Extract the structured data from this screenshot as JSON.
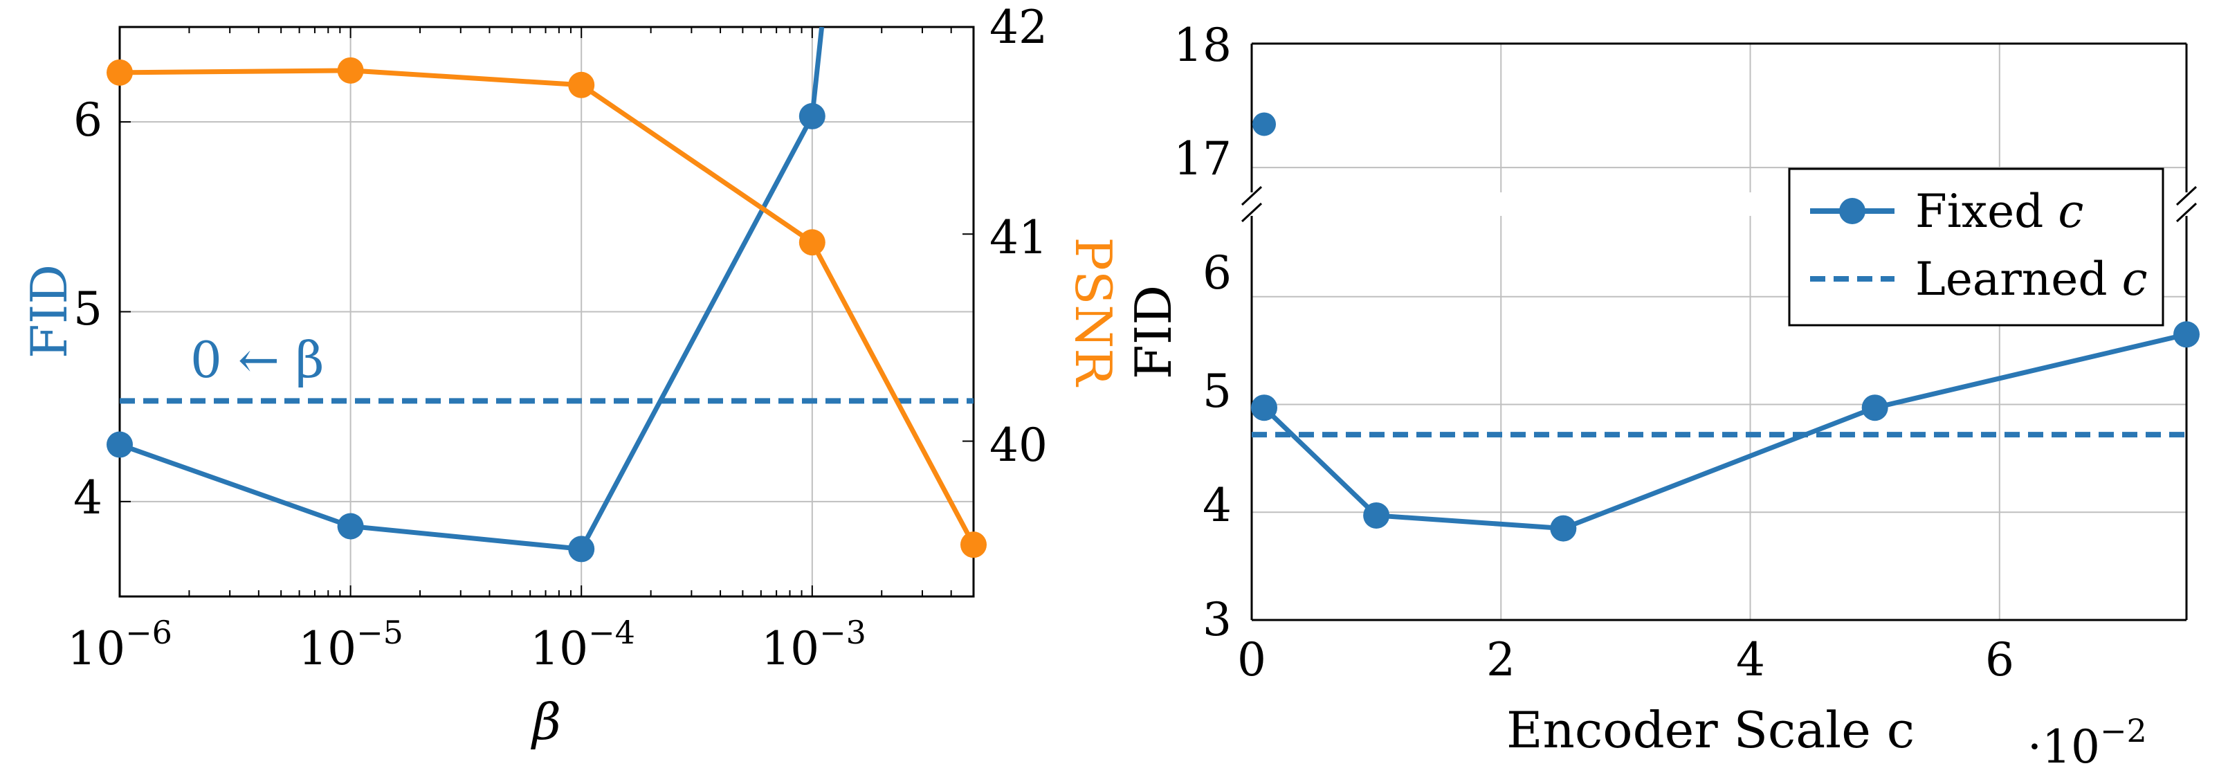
{
  "colors": {
    "blue": "#2a77b4",
    "orange": "#fb8a12",
    "grid": "#bfbfbf",
    "axis": "#000000"
  },
  "chart_data": [
    {
      "type": "line",
      "xscale": "log",
      "xlabel": "β",
      "x_ticks": [
        {
          "value": 1e-06,
          "base": "10",
          "exp": "−6"
        },
        {
          "value": 1e-05,
          "base": "10",
          "exp": "−5"
        },
        {
          "value": 0.0001,
          "base": "10",
          "exp": "−4"
        },
        {
          "value": 0.001,
          "base": "10",
          "exp": "−3"
        }
      ],
      "xlim": [
        1e-06,
        0.005
      ],
      "left_axis": {
        "label": "FID",
        "ylim": [
          3.5,
          6.5
        ],
        "ticks": [
          "4",
          "5",
          "6"
        ],
        "tick_values": [
          4,
          5,
          6
        ]
      },
      "right_axis": {
        "label": "PSNR",
        "ylim": [
          39.25,
          42
        ],
        "ticks": [
          "40",
          "41",
          "42"
        ],
        "tick_values": [
          40,
          41,
          42
        ]
      },
      "grid": true,
      "series": [
        {
          "axis": "left",
          "color": "blue",
          "markers": true,
          "x": [
            1e-06,
            1e-05,
            0.0001,
            0.001,
            0.0011
          ],
          "y": [
            4.3,
            3.87,
            3.75,
            6.03,
            6.5
          ]
        },
        {
          "axis": "right",
          "color": "orange",
          "markers": true,
          "x": [
            1e-06,
            1e-05,
            0.0001,
            0.001,
            0.005
          ],
          "y": [
            41.78,
            41.79,
            41.72,
            40.96,
            39.5
          ]
        }
      ],
      "reference_line": {
        "axis": "left",
        "y": 4.53,
        "style": "dashed",
        "color": "blue",
        "label": "0 ← β"
      }
    },
    {
      "type": "line",
      "xlabel": "Encoder Scale c",
      "ylabel": "FID",
      "x_multiplier": {
        "base": "·10",
        "exp": "−2"
      },
      "xlim": [
        0,
        7.5
      ],
      "x_ticks": [
        "0",
        "2",
        "4",
        "6"
      ],
      "x_tick_values": [
        0,
        2,
        4,
        6
      ],
      "lower_ylim": [
        3,
        6.75
      ],
      "lower_ticks": [
        "3",
        "4",
        "5",
        "6"
      ],
      "lower_tick_values": [
        3,
        4,
        5,
        6
      ],
      "upper_ylim": [
        16.8,
        18
      ],
      "upper_ticks": [
        "17",
        "18"
      ],
      "upper_tick_values": [
        17,
        18
      ],
      "broken_y_axis": true,
      "grid": true,
      "series": [
        {
          "name": "Fixed c",
          "style": "solid",
          "markers": true,
          "color": "blue",
          "x": [
            0.1,
            1.0,
            2.5,
            5.0,
            7.5
          ],
          "y": [
            4.97,
            3.97,
            3.85,
            4.97,
            5.65
          ]
        },
        {
          "name": "Learned c",
          "style": "dashed",
          "markers": false,
          "color": "blue",
          "y": 4.72
        }
      ],
      "outlier_point": {
        "x": 0.1,
        "y": 17.35
      },
      "legend": {
        "placement": "top-right",
        "entries": [
          {
            "text": "Fixed ",
            "var": "c"
          },
          {
            "text": "Learned ",
            "var": "c"
          }
        ]
      }
    }
  ]
}
